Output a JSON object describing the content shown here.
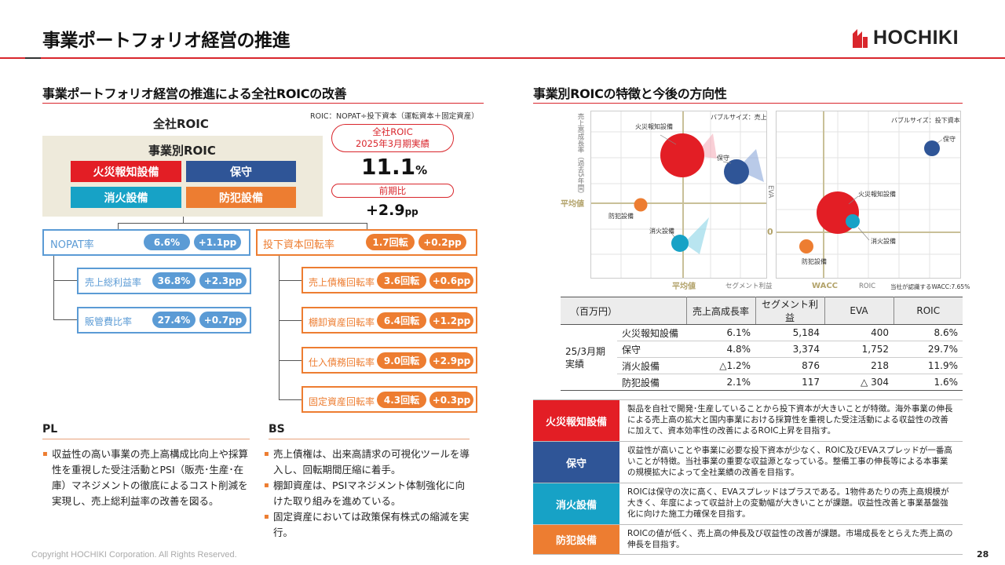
{
  "header": {
    "title": "事業ポートフォリオ経営の推進",
    "logo_text": "HOCHIKI"
  },
  "left": {
    "section_title": "事業ポートフォリオ経営の推進による全社ROICの改善",
    "formula": "ROIC：NOPAT÷投下資本（運転資本＋固定資産）",
    "company_roic_label": "全社ROIC",
    "segment_roic_label": "事業別ROIC",
    "segments": [
      "火災報知設備",
      "保守",
      "消火設備",
      "防犯設備"
    ],
    "result_label_line1": "全社ROIC",
    "result_label_line2": "2025年3月期実績",
    "result_value": "11.1",
    "result_unit": "%",
    "yoy_label": "前期比",
    "yoy_value": "+2.9",
    "yoy_unit": "pp",
    "nopat": {
      "label": "NOPAT率",
      "value": "6.6%",
      "delta": "+1.1pp"
    },
    "turnover": {
      "label": "投下資本回転率",
      "value": "1.7回転",
      "delta": "+0.2pp"
    },
    "nopat_children": [
      {
        "label": "売上総利益率",
        "value": "36.8%",
        "delta": "+2.3pp"
      },
      {
        "label": "販管費比率",
        "value": "27.4%",
        "delta": "+0.7pp"
      }
    ],
    "turnover_children": [
      {
        "label": "売上債権回転率",
        "value": "3.6回転",
        "delta": "+0.6pp"
      },
      {
        "label": "棚卸資産回転率",
        "value": "6.4回転",
        "delta": "+1.2pp"
      },
      {
        "label": "仕入債務回転率",
        "value": "9.0回転",
        "delta": "+2.9pp"
      },
      {
        "label": "固定資産回転率",
        "value": "4.3回転",
        "delta": "+0.3pp"
      }
    ],
    "pl": {
      "title": "PL",
      "bullets": [
        "収益性の高い事業の売上高構成比向上や採算性を重視した受注活動とPSI（販売･生産･在庫）マネジメントの徹底によるコスト削減を実現し、売上総利益率の改善を図る。"
      ]
    },
    "bs": {
      "title": "BS",
      "bullets": [
        "売上債権は、出来高請求の可視化ツールを導入し、回転期間圧縮に着手。",
        "棚卸資産は、PSIマネジメント体制強化に向けた取り組みを進めている。",
        "固定資産においては政策保有株式の縮減を実行。"
      ]
    }
  },
  "right": {
    "section_title": "事業別ROICの特徴と今後の方向性",
    "chart1": {
      "ylabel": "売上高成長率（過去5年間）",
      "avg_y": "平均値",
      "avg_x": "平均値",
      "xlabel": "セグメント利益",
      "bubble_note": "バブルサイズ：売上高",
      "labels": [
        "火災報知設備",
        "保守",
        "防犯設備",
        "消火設備"
      ]
    },
    "chart2": {
      "ylabel": "EVA",
      "zero": "0",
      "wacc": "WACC",
      "xlabel": "ROIC",
      "bubble_note": "バブルサイズ：投下資本",
      "wacc_note": "当社が認識するWACC:7.65%",
      "labels": [
        "保守",
        "火災報知設備",
        "消火設備",
        "防犯設備"
      ]
    },
    "table": {
      "unit": "（百万円）",
      "headers": [
        "売上高成長率",
        "セグメント利益",
        "EVA",
        "ROIC"
      ],
      "period_line1": "25/3月期",
      "period_line2": "実績",
      "rows": [
        {
          "name": "火災報知設備",
          "growth": "6.1%",
          "profit": "5,184",
          "eva": "400",
          "roic": "8.6%"
        },
        {
          "name": "保守",
          "growth": "4.8%",
          "profit": "3,374",
          "eva": "1,752",
          "roic": "29.7%"
        },
        {
          "name": "消火設備",
          "growth": "△1.2%",
          "profit": "876",
          "eva": "218",
          "roic": "11.9%"
        },
        {
          "name": "防犯設備",
          "growth": "2.1%",
          "profit": "117",
          "eva": "△ 304",
          "roic": "1.6%"
        }
      ]
    },
    "features": [
      {
        "name": "火災報知設備",
        "desc": "製品を自社で開発･生産していることから投下資本が大きいことが特徴。海外事業の伸長による売上高の拡大と国内事業における採算性を重視した受注活動による収益性の改善に加えて、資本効率性の改善によるROIC上昇を目指す。"
      },
      {
        "name": "保守",
        "desc": "収益性が高いことや事業に必要な投下資本が少なく、ROIC及びEVAスプレッドが一番高いことが特徴。当社事業の重要な収益源となっている。整備工事の伸長等による本事業の規模拡大によって全社業績の改善を目指す。"
      },
      {
        "name": "消火設備",
        "desc": "ROICは保守の次に高く、EVAスプレッドはプラスである。1物件あたりの売上高規模が大きく、年度によって収益計上の変動幅が大きいことが課題。収益性改善と事業基盤強化に向けた施工力確保を目指す。"
      },
      {
        "name": "防犯設備",
        "desc": "ROICの値が低く、売上高の伸長及び収益性の改善が課題。市場成長をとらえた売上高の伸長を目指す。"
      }
    ]
  },
  "colors": {
    "red": "#e31e25",
    "blue": "#2f5597",
    "teal": "#17a2c6",
    "orange": "#ed7d31",
    "light_blue": "#5b9bd5"
  },
  "footer": {
    "copyright": "Copyright HOCHIKI Corporation. All Rights Reserved.",
    "page": "28"
  }
}
